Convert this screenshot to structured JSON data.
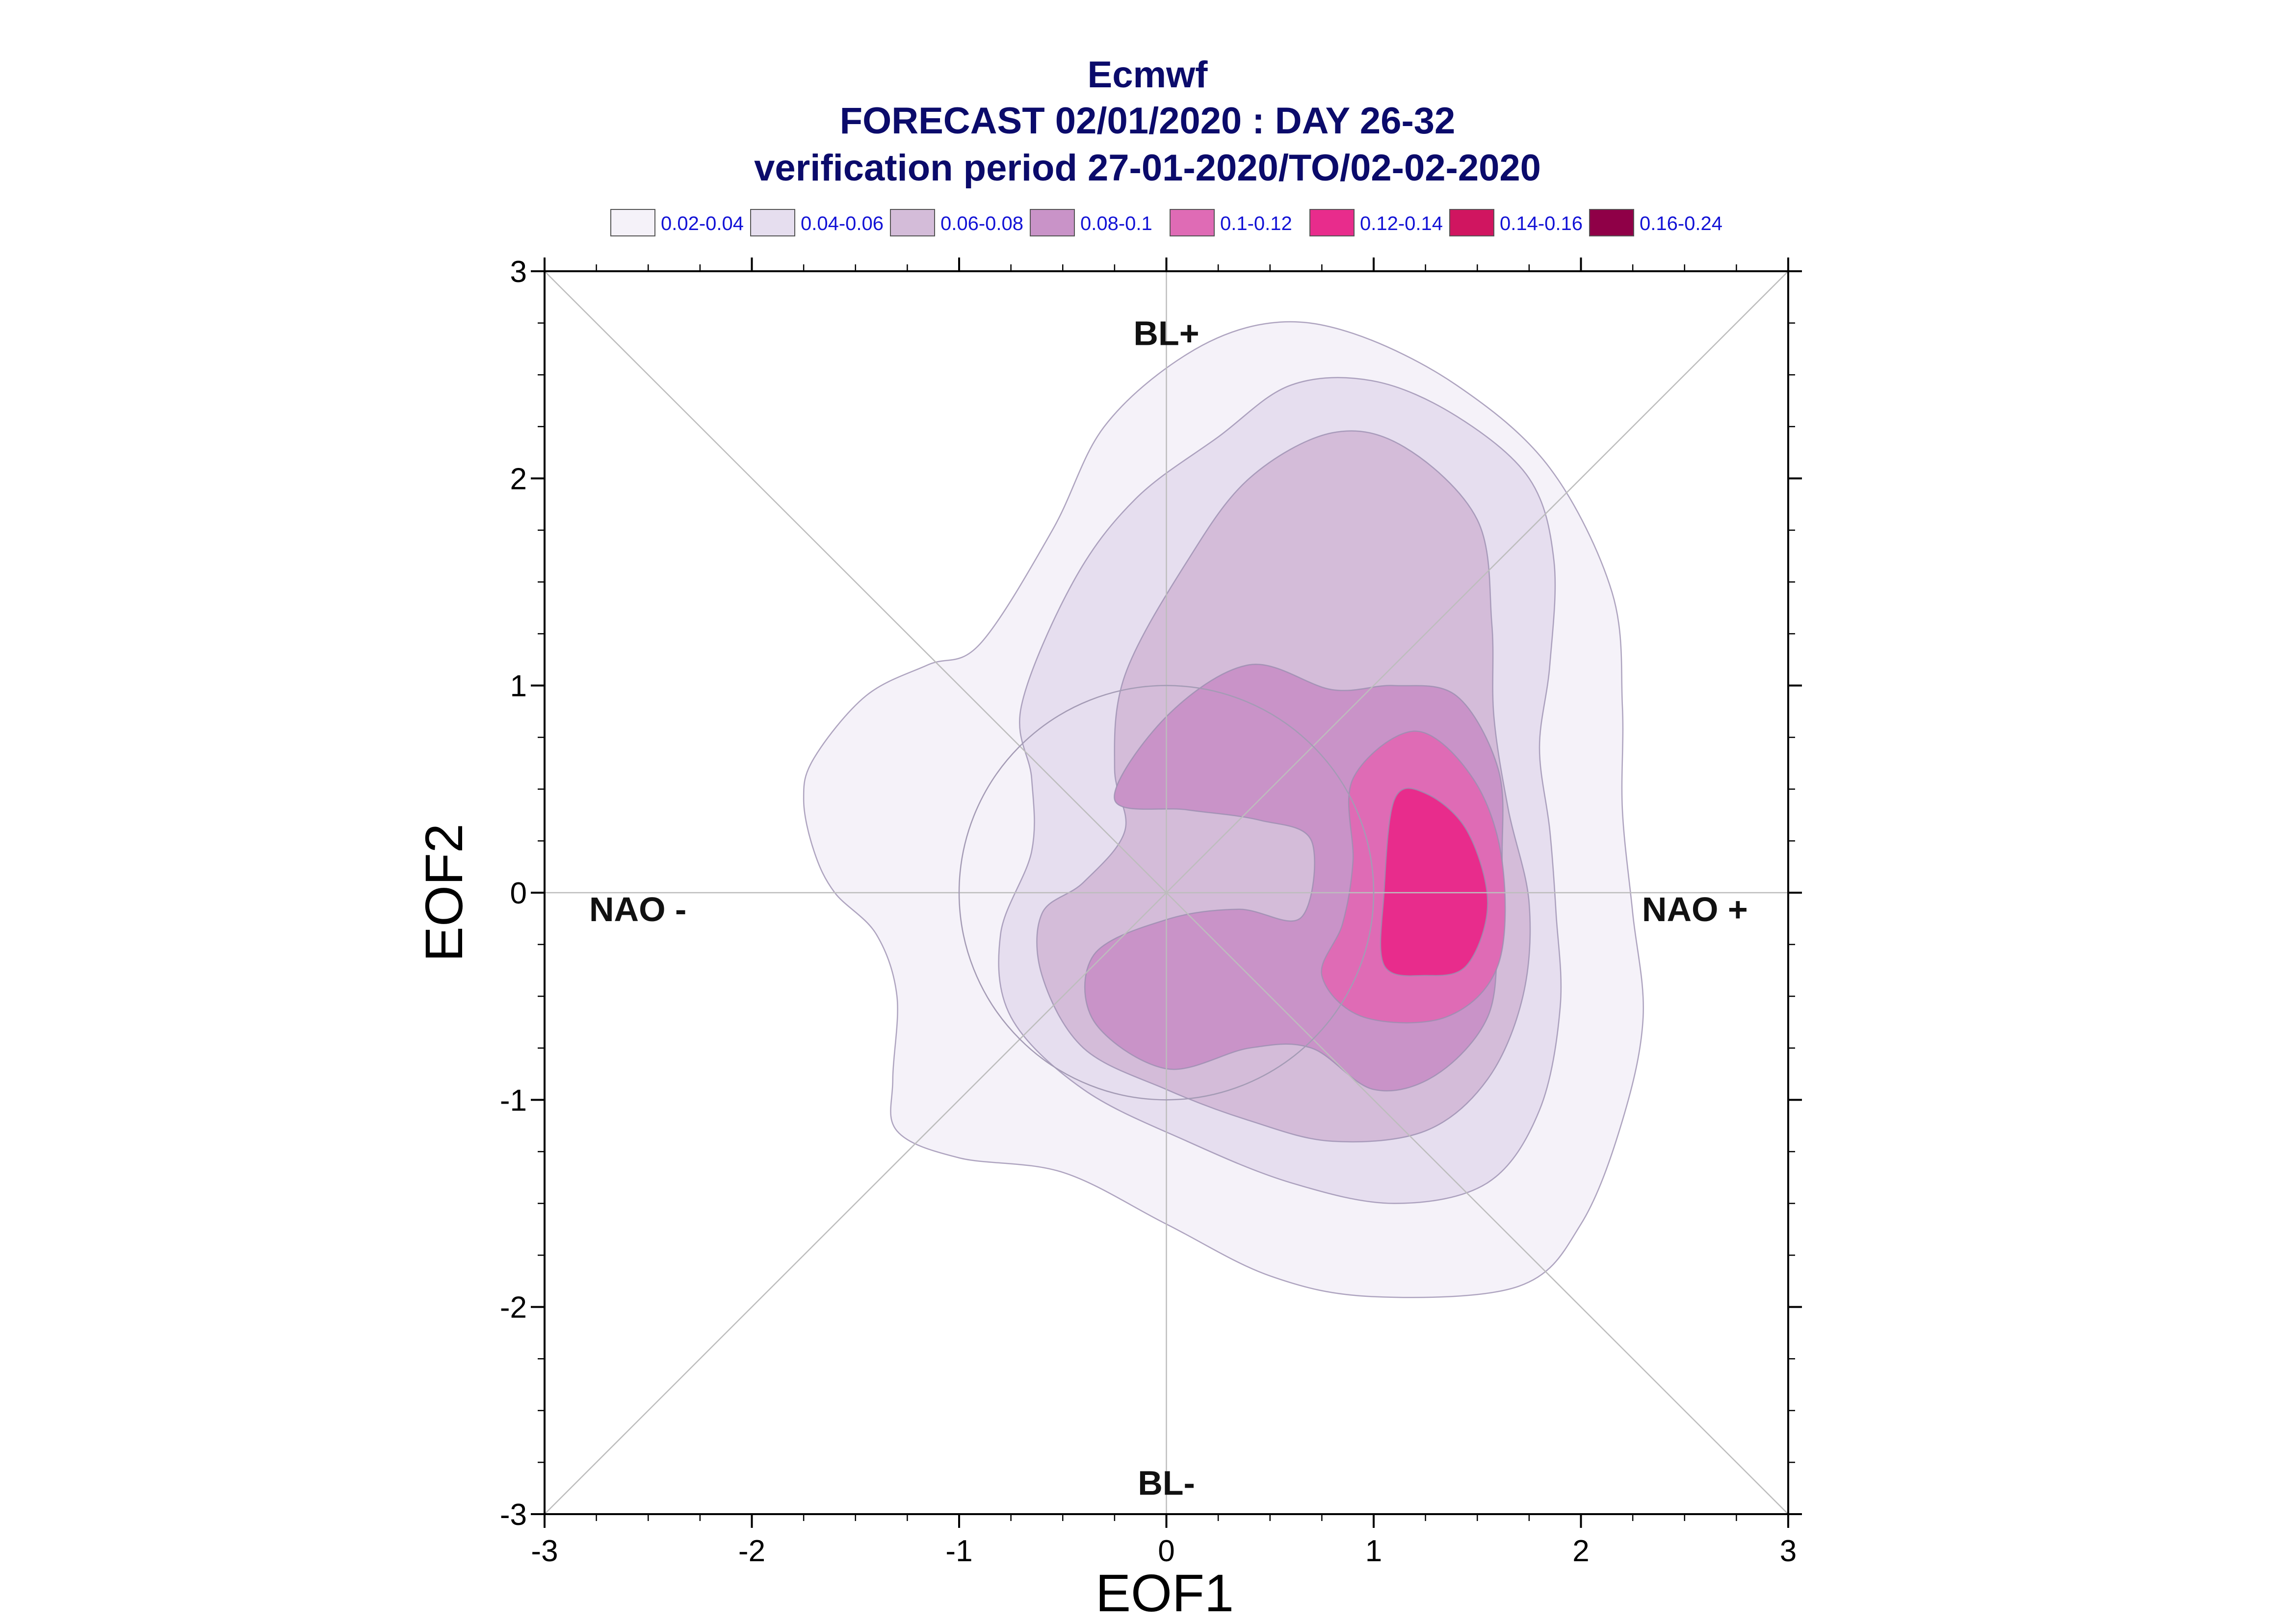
{
  "chart_data": {
    "type": "contour",
    "title": "Ecmwf",
    "subtitle_lines": [
      "FORECAST 02/01/2020 : DAY 26-32",
      "verification period 27-01-2020/TO/02-02-2020"
    ],
    "xlabel": "EOF1",
    "ylabel": "EOF2",
    "xlim": [
      -3,
      3
    ],
    "ylim": [
      -3,
      3
    ],
    "xticks": [
      "-3",
      "-2",
      "-1",
      "0",
      "1",
      "2",
      "3"
    ],
    "yticks": [
      "3",
      "2",
      "1",
      "0",
      "-1",
      "-2",
      "-3"
    ],
    "legend": [
      {
        "label": "0.02-0.04",
        "color": "#f5f2f9"
      },
      {
        "label": "0.04-0.06",
        "color": "#e6deef"
      },
      {
        "label": "0.06-0.08",
        "color": "#d4bcd9"
      },
      {
        "label": "0.08-0.1",
        "color": "#c993c8"
      },
      {
        "label": "0.1-0.12",
        "color": "#df6bb5"
      },
      {
        "label": "0.12-0.14",
        "color": "#e82c8c"
      },
      {
        "label": "0.14-0.16",
        "color": "#d01560"
      },
      {
        "label": "0.16-0.24",
        "color": "#8f0047"
      }
    ],
    "regime_labels": [
      {
        "text": "BL+",
        "x": 0,
        "y": 2.7
      },
      {
        "text": "BL-",
        "x": 0,
        "y": -2.85
      },
      {
        "text": "NAO -",
        "x": -2.55,
        "y": -0.08
      },
      {
        "text": "NAO +",
        "x": 2.55,
        "y": -0.08
      }
    ],
    "reference_circle_radius": 1,
    "contours": [
      {
        "level": "0.02-0.04",
        "points": [
          [
            -0.9,
            1.2
          ],
          [
            -0.55,
            1.75
          ],
          [
            -0.3,
            2.25
          ],
          [
            0.1,
            2.6
          ],
          [
            0.5,
            2.75
          ],
          [
            0.9,
            2.7
          ],
          [
            1.4,
            2.45
          ],
          [
            1.85,
            2.05
          ],
          [
            2.15,
            1.45
          ],
          [
            2.2,
            0.9
          ],
          [
            2.2,
            0.4
          ],
          [
            2.25,
            -0.1
          ],
          [
            2.3,
            -0.6
          ],
          [
            2.2,
            -1.1
          ],
          [
            2.0,
            -1.6
          ],
          [
            1.7,
            -1.9
          ],
          [
            1.0,
            -1.95
          ],
          [
            0.5,
            -1.85
          ],
          [
            0.0,
            -1.6
          ],
          [
            -0.5,
            -1.35
          ],
          [
            -1.0,
            -1.28
          ],
          [
            -1.3,
            -1.15
          ],
          [
            -1.32,
            -0.9
          ],
          [
            -1.3,
            -0.5
          ],
          [
            -1.4,
            -0.2
          ],
          [
            -1.6,
            0.0
          ],
          [
            -1.7,
            0.2
          ],
          [
            -1.75,
            0.45
          ],
          [
            -1.7,
            0.65
          ],
          [
            -1.45,
            0.95
          ],
          [
            -1.15,
            1.1
          ]
        ]
      },
      {
        "level": "0.04-0.06",
        "points": [
          [
            -0.7,
            0.9
          ],
          [
            -0.45,
            1.5
          ],
          [
            -0.15,
            1.9
          ],
          [
            0.25,
            2.2
          ],
          [
            0.6,
            2.45
          ],
          [
            1.0,
            2.47
          ],
          [
            1.4,
            2.3
          ],
          [
            1.75,
            2.0
          ],
          [
            1.87,
            1.6
          ],
          [
            1.85,
            1.1
          ],
          [
            1.8,
            0.7
          ],
          [
            1.85,
            0.3
          ],
          [
            1.88,
            -0.1
          ],
          [
            1.9,
            -0.55
          ],
          [
            1.8,
            -1.05
          ],
          [
            1.55,
            -1.4
          ],
          [
            1.1,
            -1.5
          ],
          [
            0.6,
            -1.4
          ],
          [
            0.1,
            -1.2
          ],
          [
            -0.4,
            -0.95
          ],
          [
            -0.75,
            -0.6
          ],
          [
            -0.8,
            -0.2
          ],
          [
            -0.65,
            0.2
          ],
          [
            -0.65,
            0.55
          ]
        ]
      },
      {
        "level": "0.06-0.08",
        "points": [
          [
            -0.2,
            1.05
          ],
          [
            0.1,
            1.6
          ],
          [
            0.4,
            2.0
          ],
          [
            0.8,
            2.22
          ],
          [
            1.15,
            2.15
          ],
          [
            1.5,
            1.8
          ],
          [
            1.57,
            1.3
          ],
          [
            1.58,
            0.85
          ],
          [
            1.65,
            0.4
          ],
          [
            1.75,
            -0.05
          ],
          [
            1.72,
            -0.5
          ],
          [
            1.55,
            -0.9
          ],
          [
            1.25,
            -1.15
          ],
          [
            0.8,
            -1.2
          ],
          [
            0.4,
            -1.1
          ],
          [
            0.0,
            -0.95
          ],
          [
            -0.4,
            -0.75
          ],
          [
            -0.6,
            -0.4
          ],
          [
            -0.6,
            -0.1
          ],
          [
            -0.4,
            0.05
          ],
          [
            -0.2,
            0.3
          ],
          [
            -0.25,
            0.6
          ]
        ]
      },
      {
        "level": "0.08-0.1",
        "points": [
          [
            -0.25,
            0.45
          ],
          [
            0.0,
            0.85
          ],
          [
            0.4,
            1.1
          ],
          [
            0.8,
            0.98
          ],
          [
            1.1,
            1.0
          ],
          [
            1.4,
            0.95
          ],
          [
            1.6,
            0.6
          ],
          [
            1.62,
            0.2
          ],
          [
            1.6,
            -0.2
          ],
          [
            1.55,
            -0.6
          ],
          [
            1.3,
            -0.88
          ],
          [
            1.0,
            -0.95
          ],
          [
            0.7,
            -0.75
          ],
          [
            0.4,
            -0.75
          ],
          [
            0.0,
            -0.85
          ],
          [
            -0.35,
            -0.62
          ],
          [
            -0.35,
            -0.3
          ],
          [
            0.0,
            -0.13
          ],
          [
            0.35,
            -0.08
          ],
          [
            0.65,
            -0.12
          ],
          [
            0.7,
            0.25
          ],
          [
            0.45,
            0.35
          ],
          [
            0.1,
            0.4
          ]
        ]
      },
      {
        "level": "0.1-0.12",
        "points": [
          [
            0.9,
            0.55
          ],
          [
            1.2,
            0.78
          ],
          [
            1.48,
            0.55
          ],
          [
            1.62,
            0.15
          ],
          [
            1.6,
            -0.35
          ],
          [
            1.35,
            -0.6
          ],
          [
            0.95,
            -0.6
          ],
          [
            0.75,
            -0.4
          ],
          [
            0.85,
            -0.15
          ],
          [
            0.9,
            0.15
          ]
        ]
      },
      {
        "level": "0.12-0.14",
        "points": [
          [
            1.1,
            0.45
          ],
          [
            1.25,
            0.48
          ],
          [
            1.45,
            0.3
          ],
          [
            1.55,
            -0.05
          ],
          [
            1.45,
            -0.35
          ],
          [
            1.25,
            -0.4
          ],
          [
            1.05,
            -0.35
          ],
          [
            1.05,
            0.0
          ]
        ]
      }
    ]
  }
}
